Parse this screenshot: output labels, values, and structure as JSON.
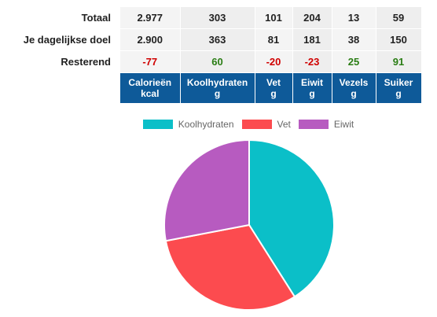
{
  "table": {
    "rows": [
      {
        "label": "Totaal",
        "values": [
          "2.977",
          "303",
          "101",
          "204",
          "13",
          "59"
        ]
      },
      {
        "label": "Je dagelijkse doel",
        "values": [
          "2.900",
          "363",
          "81",
          "181",
          "38",
          "150"
        ]
      },
      {
        "label": "Resterend",
        "values": [
          "-77",
          "60",
          "-20",
          "-23",
          "25",
          "91"
        ]
      }
    ],
    "columns": [
      {
        "name": "Calorieën",
        "unit": "kcal"
      },
      {
        "name": "Koolhydraten",
        "unit": "g"
      },
      {
        "name": "Vet",
        "unit": "g"
      },
      {
        "name": "Eiwit",
        "unit": "g"
      },
      {
        "name": "Vezels",
        "unit": "g"
      },
      {
        "name": "Suiker",
        "unit": "g"
      }
    ],
    "colors": {
      "header_bg": "#0e5a99",
      "negative": "#d00000",
      "positive": "#2a7d14"
    }
  },
  "chart_data": {
    "type": "pie",
    "categories": [
      "Koolhydraten",
      "Vet",
      "Eiwit"
    ],
    "values": [
      41,
      31,
      28
    ],
    "colors": [
      "#0bbfc8",
      "#fc4b4f",
      "#b75bc0"
    ],
    "legend": "top"
  }
}
